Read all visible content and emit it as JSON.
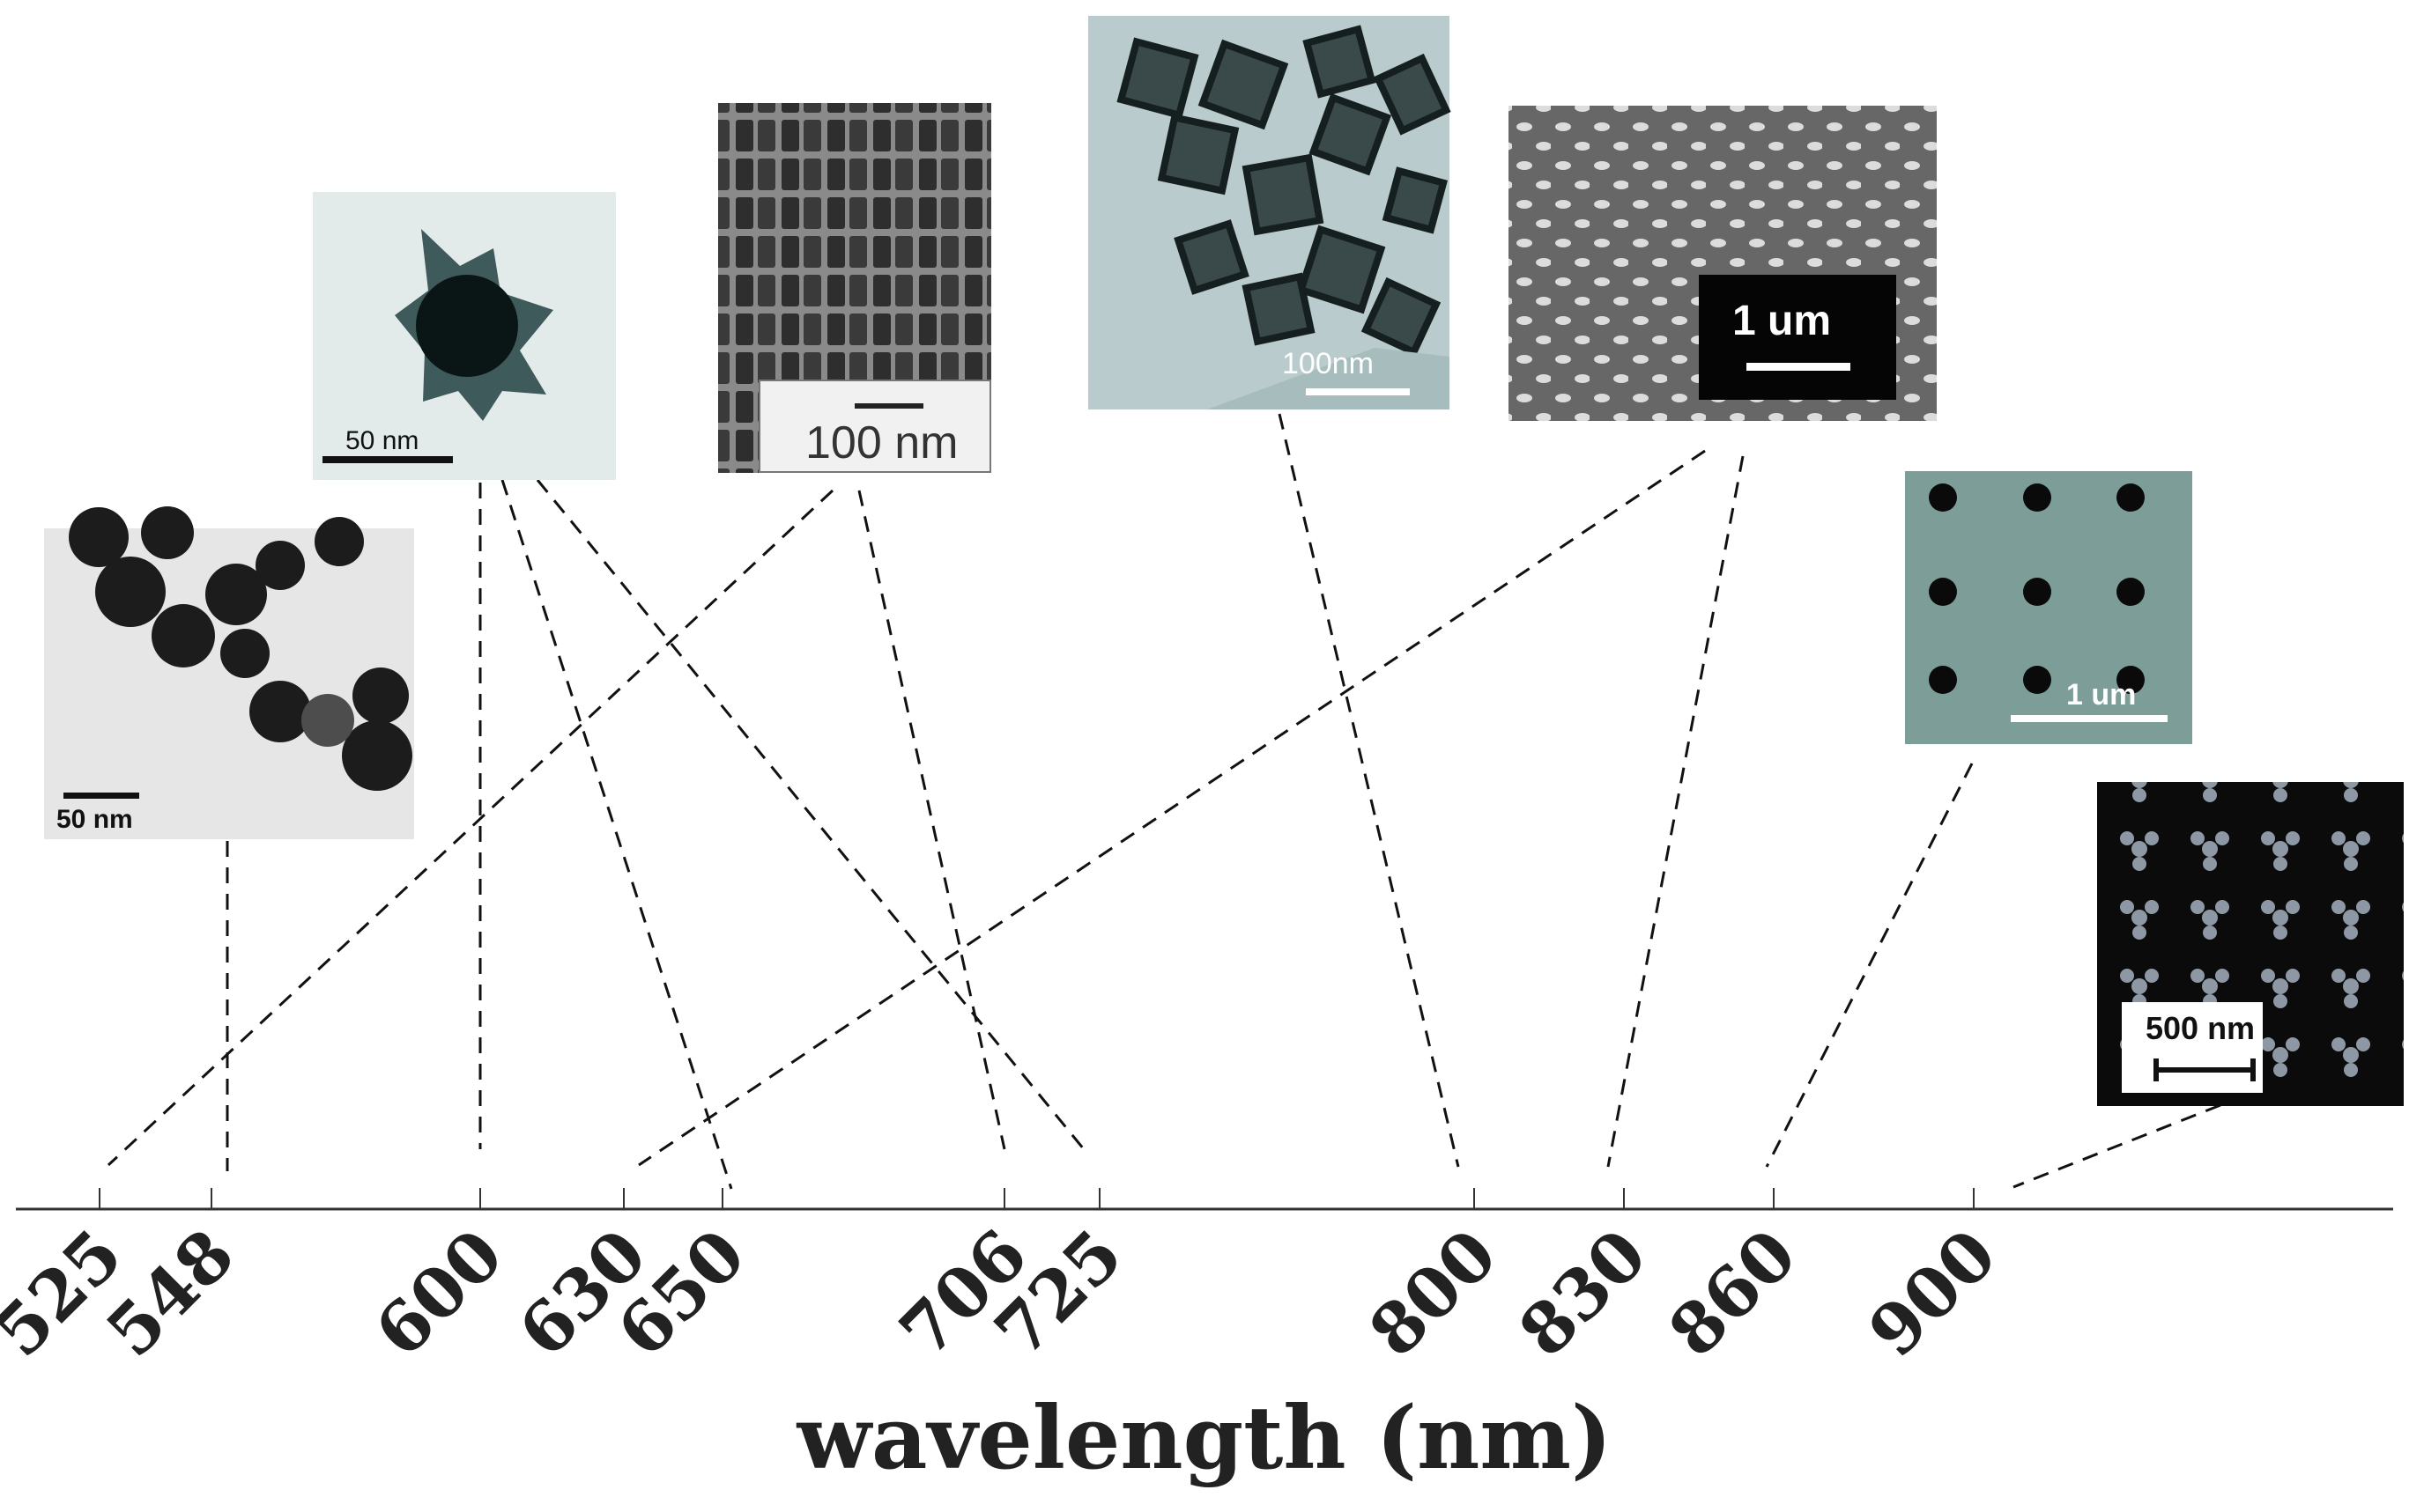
{
  "axis": {
    "title": "wavelength (nm)",
    "min": 500,
    "max": 950,
    "ticks": [
      525,
      548,
      600,
      630,
      650,
      706,
      725,
      800,
      830,
      860,
      900
    ]
  },
  "insets": [
    {
      "id": "spheres",
      "scale_label": "50 nm",
      "wavelengths": [
        548
      ]
    },
    {
      "id": "nanostar",
      "scale_label": "50 nm",
      "wavelengths": [
        600,
        650,
        725
      ]
    },
    {
      "id": "nanorods",
      "scale_label": "100 nm",
      "wavelengths": [
        525,
        706
      ]
    },
    {
      "id": "nanocages",
      "scale_label": "100nm",
      "wavelengths": [
        800
      ]
    },
    {
      "id": "nanodisk-array",
      "scale_label": "1 um",
      "wavelengths": [
        630,
        830
      ]
    },
    {
      "id": "nanohole-array",
      "scale_label": "1 um",
      "wavelengths": [
        860
      ]
    },
    {
      "id": "trimer-array",
      "scale_label": "500 nm",
      "wavelengths": [
        900
      ]
    }
  ],
  "colors": {
    "axis": "#333333",
    "text": "#222222",
    "em_light": "#e8e8e8",
    "em_blue": "#b9cbcc",
    "sem_gray": "#6a6a6a",
    "hole_teal": "#7d9e98",
    "dark_bg": "#0b0b0b"
  }
}
